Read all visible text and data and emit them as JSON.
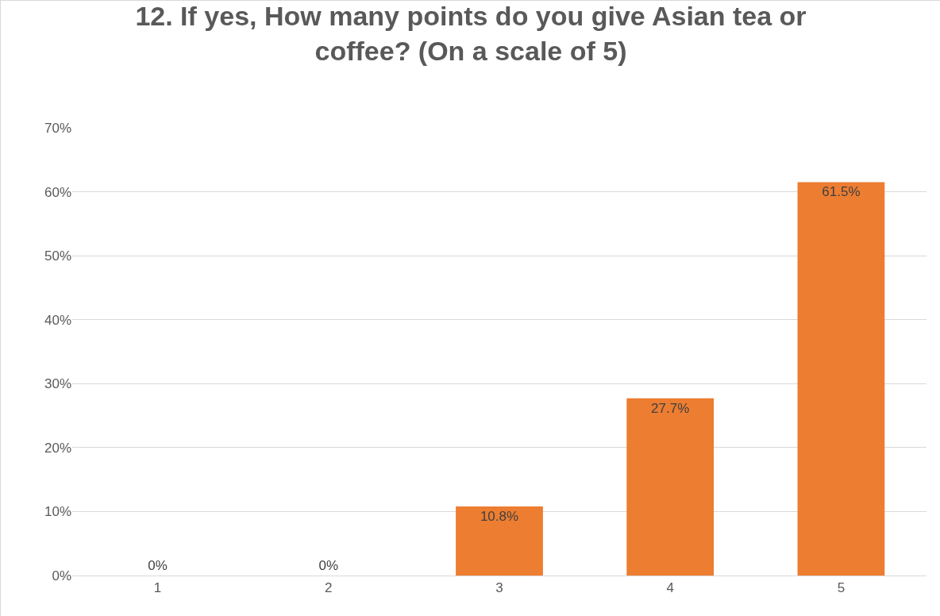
{
  "chart_data": {
    "type": "bar",
    "title": "12. If yes, How many points do you give Asian tea or coffee? (On a scale of 5)",
    "categories": [
      "1",
      "2",
      "3",
      "4",
      "5"
    ],
    "values": [
      0,
      0,
      10.8,
      27.7,
      61.5
    ],
    "value_labels": [
      "0%",
      "0%",
      "10.8%",
      "27.7%",
      "61.5%"
    ],
    "color": "#ed7d31",
    "ylim": [
      0,
      70
    ],
    "yticks": [
      {
        "value": 0,
        "label": "0%"
      },
      {
        "value": 10,
        "label": "10%"
      },
      {
        "value": 20,
        "label": "20%"
      },
      {
        "value": 30,
        "label": "30%"
      },
      {
        "value": 40,
        "label": "40%"
      },
      {
        "value": 50,
        "label": "50%"
      },
      {
        "value": 60,
        "label": "60%"
      },
      {
        "value": 70,
        "label": "70%"
      }
    ],
    "grid": "y",
    "legend": false
  }
}
